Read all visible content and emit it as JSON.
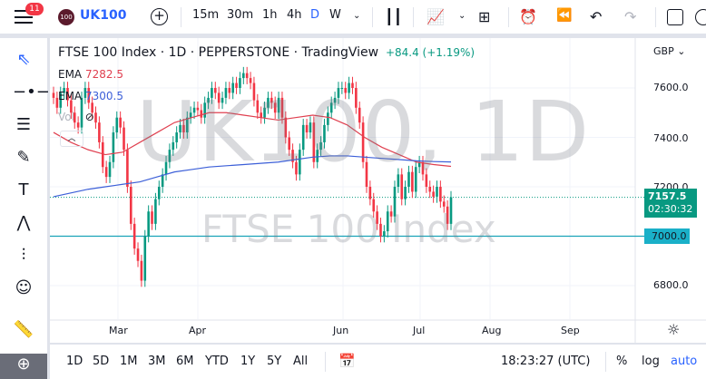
{
  "topbar": {
    "menu_badge": "11",
    "symbol_logo": "100",
    "symbol": "UK100",
    "intervals": [
      "15m",
      "30m",
      "1h",
      "4h",
      "D",
      "W"
    ],
    "active_interval": "D"
  },
  "legend": {
    "title": "FTSE 100 Index · 1D · PEPPERSTONE · TradingView",
    "change": "+84.4 (+1.19%)",
    "ema1_label": "EMA",
    "ema1_value": "7282.5",
    "ema2_label": "EMA",
    "ema2_value": "7300.5",
    "vol_label": "Vol"
  },
  "watermark": {
    "line1": "UK100, 1D",
    "line2": "FTSE 100 Index"
  },
  "price_axis": {
    "currency": "GBP",
    "ticks": [
      "7600.0",
      "7400.0",
      "7200.0",
      "6800.0"
    ],
    "last_price": "7157.5",
    "countdown": "02:30:32",
    "hline_label": "7000.0"
  },
  "time_axis": {
    "ticks": [
      "Mar",
      "Apr",
      "Jun",
      "Jul",
      "Aug",
      "Sep"
    ]
  },
  "bottombar": {
    "ranges": [
      "1D",
      "5D",
      "1M",
      "3M",
      "6M",
      "YTD",
      "1Y",
      "5Y",
      "All"
    ],
    "clock": "18:23:27 (UTC)",
    "percent": "%",
    "log": "log",
    "auto": "auto"
  },
  "colors": {
    "up": "#089981",
    "down": "#f23645",
    "ema1": "#e04050",
    "ema2": "#3c5fd8",
    "hline": "#1aa3b8",
    "accent": "#2962ff"
  },
  "chart_data": {
    "type": "candlestick",
    "symbol": "UK100",
    "interval": "1D",
    "ylim": [
      6700,
      7750
    ],
    "close": [
      7560,
      7520,
      7580,
      7600,
      7550,
      7500,
      7460,
      7440,
      7560,
      7600,
      7540,
      7500,
      7460,
      7380,
      7280,
      7240,
      7300,
      7420,
      7480,
      7440,
      7350,
      7200,
      7050,
      6950,
      6900,
      6820,
      7000,
      7100,
      7050,
      7150,
      7200,
      7250,
      7300,
      7350,
      7380,
      7420,
      7450,
      7420,
      7480,
      7500,
      7520,
      7510,
      7480,
      7540,
      7560,
      7600,
      7580,
      7540,
      7560,
      7600,
      7580,
      7620,
      7600,
      7640,
      7660,
      7640,
      7620,
      7550,
      7500,
      7480,
      7520,
      7560,
      7540,
      7500,
      7560,
      7480,
      7400,
      7350,
      7300,
      7250,
      7350,
      7450,
      7420,
      7460,
      7300,
      7350,
      7380,
      7450,
      7500,
      7540,
      7560,
      7600,
      7600,
      7580,
      7620,
      7600,
      7520,
      7460,
      7300,
      7200,
      7150,
      7100,
      7050,
      7000,
      7020,
      7100,
      7080,
      7200,
      7250,
      7150,
      7200,
      7260,
      7180,
      7280,
      7300,
      7250,
      7200,
      7180,
      7160,
      7200,
      7140,
      7120,
      7050,
      7157.5
    ],
    "ema1": [
      7420,
      7380,
      7350,
      7330,
      7340,
      7380,
      7420,
      7460,
      7480,
      7500,
      7500,
      7490,
      7480,
      7470,
      7480,
      7490,
      7480,
      7450,
      7400,
      7360,
      7330,
      7300,
      7290,
      7282.5
    ],
    "ema2": [
      7160,
      7175,
      7190,
      7200,
      7210,
      7220,
      7240,
      7260,
      7270,
      7280,
      7285,
      7290,
      7295,
      7300,
      7310,
      7320,
      7325,
      7325,
      7320,
      7315,
      7310,
      7305,
      7302,
      7300.5
    ],
    "hline": 7000
  }
}
